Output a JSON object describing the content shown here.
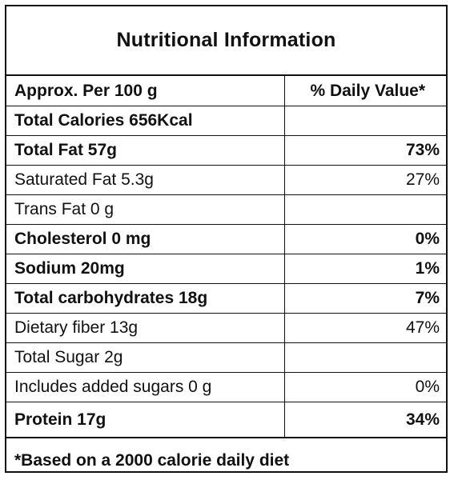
{
  "title": "Nutritional Information",
  "header": {
    "left": "Approx. Per 100 g",
    "right": "% Daily Value*"
  },
  "rows": [
    {
      "name": "Total Calories 656Kcal",
      "dv": "",
      "bold": true
    },
    {
      "name": "Total Fat 57g",
      "dv": "73%",
      "bold": true
    },
    {
      "name": "Saturated Fat 5.3g",
      "dv": "27%",
      "bold": false
    },
    {
      "name": "Trans Fat 0 g",
      "dv": "",
      "bold": false
    },
    {
      "name": "Cholesterol 0 mg",
      "dv": "0%",
      "bold": true
    },
    {
      "name": "Sodium 20mg",
      "dv": "1%",
      "bold": true
    },
    {
      "name": "Total carbohydrates 18g",
      "dv": "7%",
      "bold": true
    },
    {
      "name": "Dietary fiber 13g",
      "dv": "47%",
      "bold": false
    },
    {
      "name": "Total Sugar 2g",
      "dv": "",
      "bold": false
    },
    {
      "name": "Includes added sugars 0 g",
      "dv": "0%",
      "bold": false
    },
    {
      "name": "Protein 17g",
      "dv": "34%",
      "bold": true
    }
  ],
  "footnote": "*Based on a 2000 calorie daily diet"
}
